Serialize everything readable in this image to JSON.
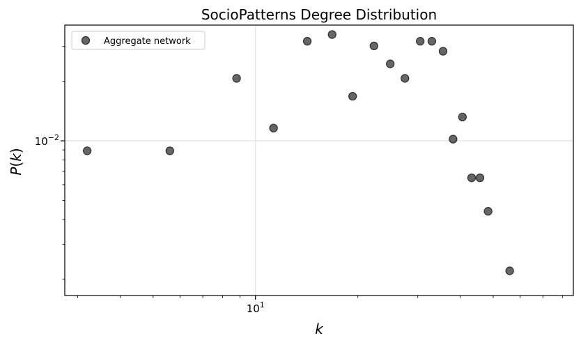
{
  "chart_data": {
    "type": "scatter",
    "title": "SocioPatterns Degree Distribution",
    "xlabel": "k",
    "ylabel_main": "P",
    "ylabel_arg": "k",
    "xscale": "log",
    "yscale": "log",
    "xlim": [
      2.75,
      86
    ],
    "ylim": [
      0.00165,
      0.0385
    ],
    "x_tick_labels": [
      {
        "base": "10",
        "exp": "1",
        "value": 10
      }
    ],
    "y_tick_labels": [
      {
        "base": "10",
        "exp": "−2",
        "value": 0.01
      }
    ],
    "grid": true,
    "legend": {
      "position": "top-left",
      "entries": [
        "Aggregate network"
      ]
    },
    "marker_color": "#666666",
    "marker_edge": "#333333",
    "series": [
      {
        "name": "Aggregate network",
        "points": [
          {
            "x": 3.2,
            "y": 0.0089
          },
          {
            "x": 5.6,
            "y": 0.0089
          },
          {
            "x": 8.8,
            "y": 0.0207
          },
          {
            "x": 11.3,
            "y": 0.0116
          },
          {
            "x": 14.2,
            "y": 0.0319
          },
          {
            "x": 16.8,
            "y": 0.0345
          },
          {
            "x": 19.3,
            "y": 0.0168
          },
          {
            "x": 22.3,
            "y": 0.0302
          },
          {
            "x": 24.9,
            "y": 0.0245
          },
          {
            "x": 27.5,
            "y": 0.0207
          },
          {
            "x": 30.5,
            "y": 0.0319
          },
          {
            "x": 33.0,
            "y": 0.0319
          },
          {
            "x": 35.6,
            "y": 0.0284
          },
          {
            "x": 38.1,
            "y": 0.0102
          },
          {
            "x": 40.6,
            "y": 0.0132
          },
          {
            "x": 43.2,
            "y": 0.0065
          },
          {
            "x": 45.7,
            "y": 0.0065
          },
          {
            "x": 48.3,
            "y": 0.0044
          },
          {
            "x": 55.9,
            "y": 0.0022
          }
        ]
      }
    ]
  }
}
